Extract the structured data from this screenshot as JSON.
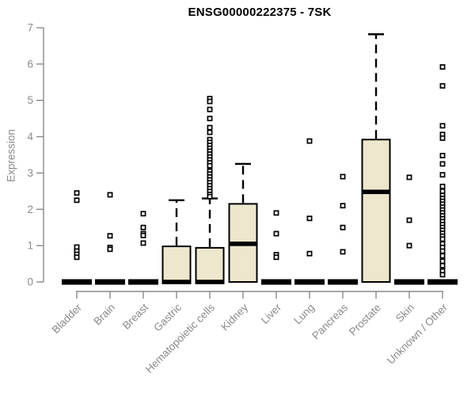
{
  "chart_data": {
    "type": "boxplot",
    "title": "ENSG00000222375 - 7SK",
    "xlabel": "",
    "ylabel": "Expression",
    "ylim": [
      0,
      7
    ],
    "yticks": [
      0,
      1,
      2,
      3,
      4,
      5,
      6,
      7
    ],
    "grid": false,
    "legend": "none",
    "colors": {
      "box_fill": "#ede7cd",
      "box_stroke": "#000000",
      "median": "#000000",
      "whisker": "#000000",
      "outlier_stroke": "#000000",
      "outlier_fill": "#ffffff",
      "axis": "#8a8a8a",
      "tick_label": "#8a8a8a",
      "title": "#000000",
      "background": "#ffffff"
    },
    "categories": [
      "Bladder",
      "Brain",
      "Breast",
      "Gastric",
      "Hematopoietic cells",
      "Kidney",
      "Liver",
      "Lung",
      "Pancreas",
      "Prostate",
      "Skin",
      "Unknown / Other"
    ],
    "series": [
      {
        "name": "Bladder",
        "q1": 0,
        "median": 0,
        "q3": 0,
        "whisker_low": 0,
        "whisker_high": 0,
        "outliers": [
          2.45,
          2.25,
          0.96,
          0.85,
          0.76,
          0.68
        ]
      },
      {
        "name": "Brain",
        "q1": 0,
        "median": 0,
        "q3": 0,
        "whisker_low": 0,
        "whisker_high": 0,
        "outliers": [
          2.4,
          1.27,
          0.95,
          0.9
        ]
      },
      {
        "name": "Breast",
        "q1": 0,
        "median": 0,
        "q3": 0,
        "whisker_low": 0,
        "whisker_high": 0,
        "outliers": [
          1.88,
          1.5,
          1.33,
          1.28,
          1.07
        ]
      },
      {
        "name": "Gastric",
        "q1": 0,
        "median": 0,
        "q3": 0.98,
        "whisker_low": 0,
        "whisker_high": 2.25,
        "outliers": []
      },
      {
        "name": "Hematopoietic cells",
        "q1": 0,
        "median": 0,
        "q3": 0.94,
        "whisker_low": 0,
        "whisker_high": 2.3,
        "outliers": [
          5.05,
          4.97,
          4.75,
          4.5,
          4.25,
          4.12,
          3.92,
          3.84,
          3.76,
          3.68,
          3.6,
          3.52,
          3.44,
          3.36,
          3.28,
          3.2,
          3.05,
          2.97,
          2.89,
          2.81,
          2.73,
          2.65,
          2.57,
          2.49,
          2.41,
          2.35
        ]
      },
      {
        "name": "Kidney",
        "q1": 0,
        "median": 1.05,
        "q3": 2.15,
        "whisker_low": 0,
        "whisker_high": 3.25,
        "outliers": []
      },
      {
        "name": "Liver",
        "q1": 0,
        "median": 0,
        "q3": 0,
        "whisker_low": 0,
        "whisker_high": 0,
        "outliers": [
          1.9,
          1.33,
          0.75,
          0.68
        ]
      },
      {
        "name": "Lung",
        "q1": 0,
        "median": 0,
        "q3": 0,
        "whisker_low": 0,
        "whisker_high": 0,
        "outliers": [
          3.88,
          1.75,
          0.78
        ]
      },
      {
        "name": "Pancreas",
        "q1": 0,
        "median": 0,
        "q3": 0,
        "whisker_low": 0,
        "whisker_high": 0,
        "outliers": [
          2.9,
          2.1,
          1.5,
          0.83
        ]
      },
      {
        "name": "Prostate",
        "q1": 0,
        "median": 2.48,
        "q3": 3.92,
        "whisker_low": 0,
        "whisker_high": 6.82,
        "outliers": []
      },
      {
        "name": "Skin",
        "q1": 0,
        "median": 0,
        "q3": 0,
        "whisker_low": 0,
        "whisker_high": 0,
        "outliers": [
          2.88,
          1.7,
          1.0
        ]
      },
      {
        "name": "Unknown / Other",
        "q1": 0,
        "median": 0,
        "q3": 0,
        "whisker_low": 0,
        "whisker_high": 0,
        "outliers": [
          5.92,
          5.4,
          4.3,
          4.06,
          3.96,
          3.48,
          3.25,
          2.95,
          2.63,
          2.5,
          2.38,
          2.3,
          2.22,
          2.14,
          2.06,
          1.98,
          1.9,
          1.82,
          1.74,
          1.66,
          1.58,
          1.5,
          1.42,
          1.34,
          1.26,
          1.18,
          1.05,
          0.95,
          0.85,
          0.72,
          0.57,
          0.45,
          0.3,
          0.2
        ]
      }
    ]
  }
}
